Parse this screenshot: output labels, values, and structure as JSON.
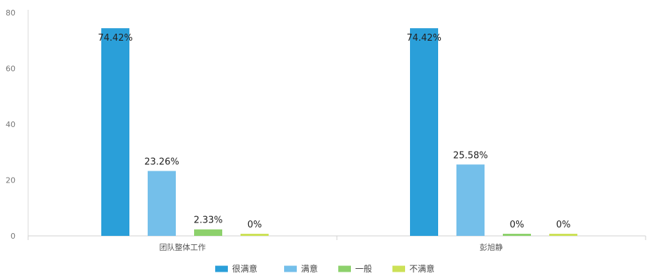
{
  "chart_data": {
    "type": "bar",
    "categories": [
      "团队整体工作",
      "彭旭静"
    ],
    "series": [
      {
        "name": "很满意",
        "color": "#2A9FD9",
        "values": [
          74.42,
          74.42
        ],
        "labels": [
          "74.42%",
          "74.42%"
        ]
      },
      {
        "name": "满意",
        "color": "#74BFEA",
        "values": [
          23.26,
          25.58
        ],
        "labels": [
          "23.26%",
          "25.58%"
        ]
      },
      {
        "name": "一般",
        "color": "#8DD16C",
        "values": [
          2.33,
          0
        ],
        "labels": [
          "2.33%",
          "0%"
        ]
      },
      {
        "name": "不满意",
        "color": "#CCE157",
        "values": [
          0,
          0
        ],
        "labels": [
          "0%",
          "0%"
        ]
      }
    ],
    "y_ticks": [
      "0",
      "20",
      "40",
      "60",
      "80"
    ],
    "ylim": [
      0,
      80
    ],
    "title": "",
    "xlabel": "",
    "ylabel": "",
    "grid": false,
    "legend_position": "bottom"
  }
}
